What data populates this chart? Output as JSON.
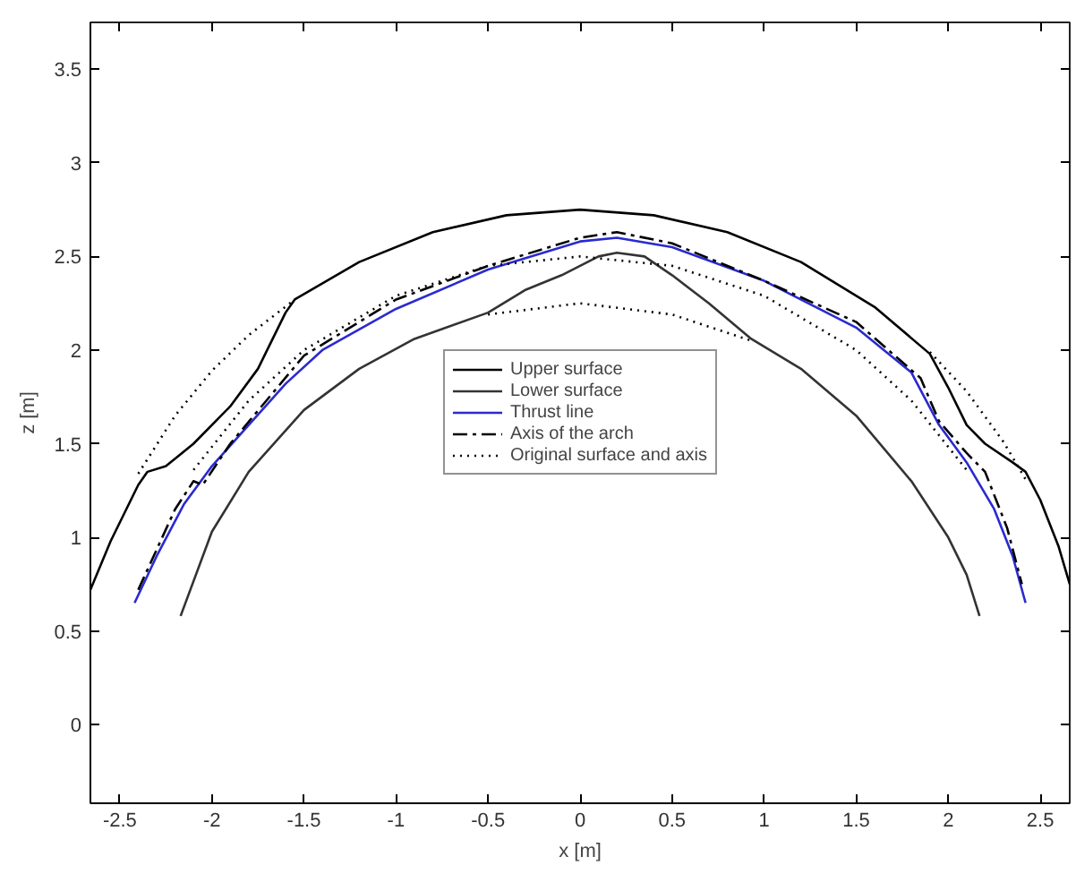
{
  "chart_data": {
    "type": "line",
    "xlabel": "x [m]",
    "ylabel": "z [m]",
    "xlim": [
      -2.66,
      2.66
    ],
    "ylim": [
      -0.42,
      3.75
    ],
    "xticks": [
      -2.5,
      -2,
      -1.5,
      -1,
      -0.5,
      0,
      0.5,
      1,
      1.5,
      2,
      2.5
    ],
    "yticks": [
      0,
      0.5,
      1,
      1.5,
      2,
      2.5,
      3,
      3.5
    ],
    "grid": false,
    "legend": "center",
    "series": [
      {
        "name": "Upper surface",
        "color": "#000000",
        "line_style": "solid",
        "x": [
          -2.66,
          -2.55,
          -2.4,
          -2.35,
          -2.25,
          -2.1,
          -1.9,
          -1.75,
          -1.6,
          -1.55,
          -1.2,
          -0.8,
          -0.4,
          0,
          0.4,
          0.8,
          1.2,
          1.6,
          1.9,
          2.0,
          2.1,
          2.2,
          2.35,
          2.42,
          2.5,
          2.6,
          2.66
        ],
        "values": [
          0.72,
          0.98,
          1.28,
          1.35,
          1.38,
          1.5,
          1.7,
          1.9,
          2.2,
          2.27,
          2.47,
          2.63,
          2.72,
          2.75,
          2.72,
          2.63,
          2.47,
          2.23,
          1.98,
          1.8,
          1.6,
          1.5,
          1.4,
          1.35,
          1.2,
          0.95,
          0.75
        ]
      },
      {
        "name": "Lower surface",
        "color": "#333333",
        "line_style": "solid",
        "x": [
          -2.17,
          -2.0,
          -1.8,
          -1.5,
          -1.2,
          -0.9,
          -0.5,
          -0.3,
          -0.1,
          0.1,
          0.2,
          0.35,
          0.5,
          0.7,
          0.93,
          1.2,
          1.5,
          1.8,
          2.0,
          2.1,
          2.17
        ],
        "values": [
          0.58,
          1.03,
          1.35,
          1.68,
          1.9,
          2.06,
          2.2,
          2.32,
          2.4,
          2.5,
          2.52,
          2.5,
          2.4,
          2.25,
          2.06,
          1.9,
          1.65,
          1.3,
          1.0,
          0.8,
          0.58
        ]
      },
      {
        "name": "Thrust line",
        "color": "#2a2ad0",
        "line_style": "solid",
        "x": [
          -2.42,
          -2.3,
          -2.15,
          -2.0,
          -1.8,
          -1.6,
          -1.4,
          -1.0,
          -0.5,
          0,
          0.2,
          0.5,
          1.0,
          1.5,
          1.8,
          1.95,
          2.1,
          2.25,
          2.35,
          2.42
        ],
        "values": [
          0.65,
          0.9,
          1.18,
          1.38,
          1.6,
          1.82,
          2.0,
          2.22,
          2.43,
          2.58,
          2.6,
          2.55,
          2.37,
          2.12,
          1.88,
          1.6,
          1.4,
          1.15,
          0.9,
          0.65
        ]
      },
      {
        "name": "Axis of the arch",
        "color": "#000000",
        "line_style": "dashdot",
        "x": [
          -2.4,
          -2.2,
          -2.1,
          -2.05,
          -1.9,
          -1.5,
          -1.0,
          -0.5,
          0,
          0.2,
          0.5,
          1.0,
          1.5,
          1.85,
          1.95,
          2.1,
          2.2,
          2.32,
          2.4
        ],
        "values": [
          0.72,
          1.15,
          1.3,
          1.28,
          1.5,
          1.97,
          2.27,
          2.45,
          2.6,
          2.63,
          2.57,
          2.37,
          2.15,
          1.85,
          1.62,
          1.45,
          1.35,
          1.05,
          0.75
        ]
      },
      {
        "name": "Original surface and axis",
        "color": "#000000",
        "line_style": "dotted",
        "x": [
          -2.4,
          -2.2,
          -2.0,
          -1.8,
          -1.55,
          null,
          1.9,
          2.1,
          2.3,
          2.42,
          null,
          -2.1,
          -1.8,
          -1.5,
          -1.0,
          -0.5,
          0,
          0.5,
          1.0,
          1.5,
          1.8,
          2.1,
          null,
          -0.5,
          0,
          0.5,
          0.93
        ],
        "values": [
          1.34,
          1.65,
          1.89,
          2.08,
          2.27,
          null,
          1.99,
          1.78,
          1.51,
          1.31,
          null,
          1.36,
          1.73,
          2.0,
          2.29,
          2.45,
          2.5,
          2.45,
          2.29,
          2.0,
          1.73,
          1.36,
          null,
          2.19,
          2.25,
          2.19,
          2.05
        ]
      }
    ]
  }
}
